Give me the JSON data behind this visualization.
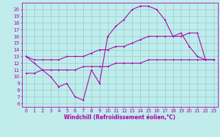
{
  "xlabel": "Windchill (Refroidissement éolien,°C)",
  "bg_color": "#c0ecec",
  "grid_color": "#90cccc",
  "line_color": "#aa00aa",
  "xlim": [
    -0.5,
    23.5
  ],
  "ylim": [
    5.5,
    21.0
  ],
  "xticks": [
    0,
    1,
    2,
    3,
    4,
    5,
    6,
    7,
    8,
    9,
    10,
    11,
    12,
    13,
    14,
    15,
    16,
    17,
    18,
    19,
    20,
    21,
    22,
    23
  ],
  "yticks": [
    6,
    7,
    8,
    9,
    10,
    11,
    12,
    13,
    14,
    15,
    16,
    17,
    18,
    19,
    20
  ],
  "series1_x": [
    0,
    1,
    2,
    3,
    4,
    5,
    6,
    7,
    8,
    9,
    10,
    11,
    12,
    13,
    14,
    15,
    16,
    17,
    18,
    19,
    20,
    21,
    22,
    23
  ],
  "series1_y": [
    13,
    12,
    11,
    10,
    8.5,
    9,
    7,
    6.5,
    11,
    9,
    16,
    17.5,
    18.5,
    20,
    20.5,
    20.5,
    20,
    18.5,
    16,
    16.5,
    14.5,
    13,
    12.5,
    12.5
  ],
  "series2_x": [
    0,
    1,
    2,
    3,
    4,
    5,
    6,
    7,
    8,
    9,
    10,
    11,
    12,
    13,
    14,
    15,
    16,
    17,
    18,
    19,
    20,
    21,
    22,
    23
  ],
  "series2_y": [
    13,
    12.5,
    12.5,
    12.5,
    12.5,
    13,
    13,
    13,
    13.5,
    14,
    14,
    14.5,
    14.5,
    15,
    15.5,
    16,
    16,
    16,
    16,
    16,
    16.5,
    16.5,
    12.5,
    12.5
  ],
  "series3_x": [
    0,
    1,
    2,
    3,
    4,
    5,
    6,
    7,
    8,
    9,
    10,
    11,
    12,
    13,
    14,
    15,
    16,
    17,
    18,
    19,
    20,
    21,
    22,
    23
  ],
  "series3_y": [
    10.5,
    10.5,
    11,
    11,
    11,
    11,
    11,
    11.5,
    11.5,
    11.5,
    11.5,
    12,
    12,
    12,
    12,
    12.5,
    12.5,
    12.5,
    12.5,
    12.5,
    12.5,
    12.5,
    12.5,
    12.5
  ],
  "marker": "D",
  "markersize": 1.5,
  "linewidth": 0.8,
  "tick_fontsize": 5.0,
  "xlabel_fontsize": 5.5
}
